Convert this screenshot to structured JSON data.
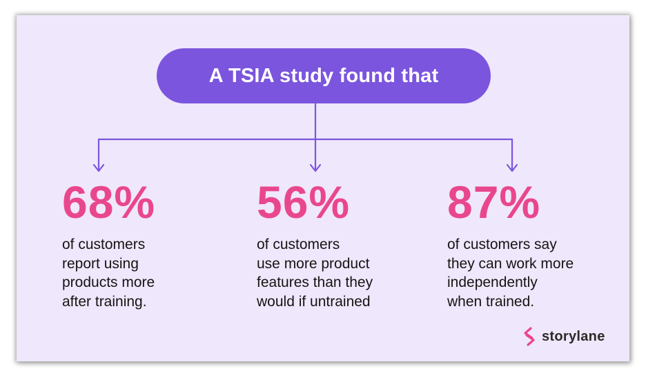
{
  "header": {
    "title": "A TSIA study found that"
  },
  "stats": [
    {
      "value": "68%",
      "description": "of customers\nreport using\nproducts more\nafter training."
    },
    {
      "value": "56%",
      "description": "of customers\nuse more product\nfeatures than they\nwould if untrained"
    },
    {
      "value": "87%",
      "description": " of customers say\nthey can work more\nindependently\nwhen trained."
    }
  ],
  "brand": {
    "name": "storylane",
    "icon": "storylane-logo-icon"
  },
  "colors": {
    "background": "#efe7fb",
    "pill": "#7b55dd",
    "stat": "#e9478d",
    "connector": "#7b55dd"
  }
}
